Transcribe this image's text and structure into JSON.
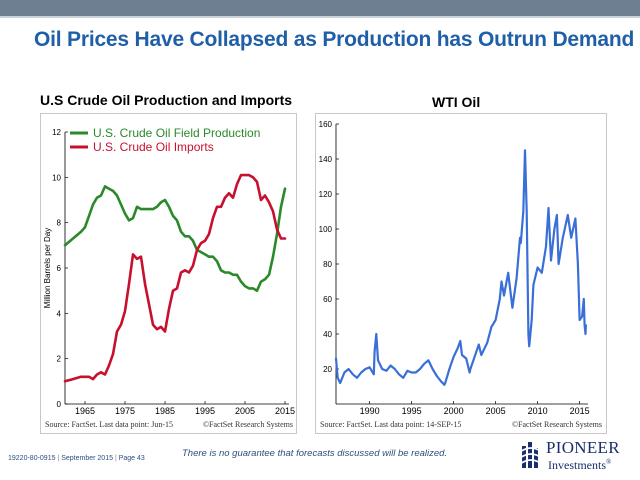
{
  "slide": {
    "title": "Oil Prices Have Collapsed as Production has Outrun Demand",
    "disclaimer": "There is no guarantee that forecasts discussed will be realized.",
    "footer_id": "19220-80-0915",
    "footer_date": "September 2015",
    "footer_page": "Page 43",
    "logo_name": "PIONEER",
    "logo_sub": "Investments",
    "logo_reg": "®",
    "colors": {
      "title": "#1f5fa8",
      "topbar": "#6f7f92",
      "logo": "#1a2f6b"
    }
  },
  "chart_data": [
    {
      "type": "line",
      "title": "U.S Crude Oil Production and Imports",
      "ylabel": "Million Barrels per Day",
      "xlabel": "",
      "xlim": [
        1960,
        2016
      ],
      "ylim": [
        0,
        12
      ],
      "x_ticks": [
        1965,
        1975,
        1985,
        1995,
        2005,
        2015
      ],
      "y_ticks": [
        0,
        2,
        4,
        6,
        8,
        10,
        12
      ],
      "grid": false,
      "legend": "top-left",
      "source": "Source: FactSet. Last data point: Jun-15",
      "copyright": "©FactSet Research Systems",
      "series": [
        {
          "name": "U.S. Crude Oil Field Production",
          "color": "#2a8a2a",
          "points": [
            [
              1960,
              7.0
            ],
            [
              1962,
              7.3
            ],
            [
              1964,
              7.6
            ],
            [
              1965,
              7.8
            ],
            [
              1966,
              8.3
            ],
            [
              1967,
              8.8
            ],
            [
              1968,
              9.1
            ],
            [
              1969,
              9.2
            ],
            [
              1970,
              9.6
            ],
            [
              1971,
              9.5
            ],
            [
              1972,
              9.4
            ],
            [
              1973,
              9.2
            ],
            [
              1974,
              8.8
            ],
            [
              1975,
              8.4
            ],
            [
              1976,
              8.1
            ],
            [
              1977,
              8.2
            ],
            [
              1978,
              8.7
            ],
            [
              1979,
              8.6
            ],
            [
              1980,
              8.6
            ],
            [
              1981,
              8.6
            ],
            [
              1982,
              8.6
            ],
            [
              1983,
              8.7
            ],
            [
              1984,
              8.9
            ],
            [
              1985,
              9.0
            ],
            [
              1986,
              8.7
            ],
            [
              1987,
              8.3
            ],
            [
              1988,
              8.1
            ],
            [
              1989,
              7.6
            ],
            [
              1990,
              7.4
            ],
            [
              1991,
              7.4
            ],
            [
              1992,
              7.2
            ],
            [
              1993,
              6.8
            ],
            [
              1994,
              6.7
            ],
            [
              1995,
              6.6
            ],
            [
              1996,
              6.5
            ],
            [
              1997,
              6.5
            ],
            [
              1998,
              6.3
            ],
            [
              1999,
              5.9
            ],
            [
              2000,
              5.8
            ],
            [
              2001,
              5.8
            ],
            [
              2002,
              5.7
            ],
            [
              2003,
              5.7
            ],
            [
              2004,
              5.4
            ],
            [
              2005,
              5.2
            ],
            [
              2006,
              5.1
            ],
            [
              2007,
              5.1
            ],
            [
              2008,
              5.0
            ],
            [
              2009,
              5.4
            ],
            [
              2010,
              5.5
            ],
            [
              2011,
              5.7
            ],
            [
              2012,
              6.5
            ],
            [
              2013,
              7.5
            ],
            [
              2014,
              8.7
            ],
            [
              2015,
              9.5
            ]
          ]
        },
        {
          "name": "U.S. Crude Oil Imports",
          "color": "#c8102e",
          "points": [
            [
              1960,
              1.0
            ],
            [
              1962,
              1.1
            ],
            [
              1964,
              1.2
            ],
            [
              1965,
              1.2
            ],
            [
              1966,
              1.2
            ],
            [
              1967,
              1.1
            ],
            [
              1968,
              1.3
            ],
            [
              1969,
              1.4
            ],
            [
              1970,
              1.3
            ],
            [
              1971,
              1.7
            ],
            [
              1972,
              2.2
            ],
            [
              1973,
              3.2
            ],
            [
              1974,
              3.5
            ],
            [
              1975,
              4.1
            ],
            [
              1976,
              5.3
            ],
            [
              1977,
              6.6
            ],
            [
              1978,
              6.4
            ],
            [
              1979,
              6.5
            ],
            [
              1980,
              5.3
            ],
            [
              1981,
              4.4
            ],
            [
              1982,
              3.5
            ],
            [
              1983,
              3.3
            ],
            [
              1984,
              3.4
            ],
            [
              1985,
              3.2
            ],
            [
              1986,
              4.2
            ],
            [
              1987,
              5.0
            ],
            [
              1988,
              5.1
            ],
            [
              1989,
              5.8
            ],
            [
              1990,
              5.9
            ],
            [
              1991,
              5.8
            ],
            [
              1992,
              6.1
            ],
            [
              1993,
              6.8
            ],
            [
              1994,
              7.1
            ],
            [
              1995,
              7.2
            ],
            [
              1996,
              7.5
            ],
            [
              1997,
              8.2
            ],
            [
              1998,
              8.7
            ],
            [
              1999,
              8.7
            ],
            [
              2000,
              9.1
            ],
            [
              2001,
              9.3
            ],
            [
              2002,
              9.1
            ],
            [
              2003,
              9.7
            ],
            [
              2004,
              10.1
            ],
            [
              2005,
              10.1
            ],
            [
              2006,
              10.1
            ],
            [
              2007,
              10.0
            ],
            [
              2008,
              9.8
            ],
            [
              2009,
              9.0
            ],
            [
              2010,
              9.2
            ],
            [
              2011,
              8.9
            ],
            [
              2012,
              8.5
            ],
            [
              2013,
              7.7
            ],
            [
              2014,
              7.3
            ],
            [
              2015,
              7.3
            ]
          ]
        }
      ]
    },
    {
      "type": "line",
      "title": "WTI Oil",
      "ylabel": "",
      "xlabel": "",
      "xlim": [
        1986,
        2016
      ],
      "ylim": [
        0,
        160
      ],
      "x_ticks": [
        1990,
        1995,
        2000,
        2005,
        2010,
        2015
      ],
      "y_ticks": [
        20,
        40,
        60,
        80,
        100,
        120,
        140,
        160
      ],
      "grid": false,
      "legend": "none",
      "source": "Source: FactSet. Last data point: 14-SEP-15",
      "copyright": "©FactSet Research Systems",
      "series": [
        {
          "color": "#3a6fd8",
          "points": [
            [
              1986,
              26
            ],
            [
              1986.2,
              15
            ],
            [
              1986.5,
              12
            ],
            [
              1987,
              18
            ],
            [
              1987.5,
              20
            ],
            [
              1988,
              17
            ],
            [
              1988.5,
              15
            ],
            [
              1989,
              18
            ],
            [
              1989.5,
              20
            ],
            [
              1990,
              21
            ],
            [
              1990.5,
              17
            ],
            [
              1990.6,
              30
            ],
            [
              1990.8,
              40
            ],
            [
              1991,
              25
            ],
            [
              1991.5,
              20
            ],
            [
              1992,
              19
            ],
            [
              1992.5,
              22
            ],
            [
              1993,
              20
            ],
            [
              1993.5,
              17
            ],
            [
              1994,
              15
            ],
            [
              1994.5,
              19
            ],
            [
              1995,
              18
            ],
            [
              1995.5,
              18
            ],
            [
              1996,
              20
            ],
            [
              1996.5,
              23
            ],
            [
              1997,
              25
            ],
            [
              1997.5,
              20
            ],
            [
              1998,
              16
            ],
            [
              1998.5,
              13
            ],
            [
              1998.9,
              11
            ],
            [
              1999,
              12
            ],
            [
              1999.5,
              20
            ],
            [
              2000,
              27
            ],
            [
              2000.5,
              32
            ],
            [
              2000.8,
              36
            ],
            [
              2001,
              28
            ],
            [
              2001.5,
              26
            ],
            [
              2001.9,
              18
            ],
            [
              2002,
              20
            ],
            [
              2002.5,
              27
            ],
            [
              2003,
              34
            ],
            [
              2003.3,
              28
            ],
            [
              2003.5,
              30
            ],
            [
              2004,
              35
            ],
            [
              2004.5,
              44
            ],
            [
              2005,
              48
            ],
            [
              2005.5,
              60
            ],
            [
              2005.7,
              70
            ],
            [
              2006,
              62
            ],
            [
              2006.5,
              75
            ],
            [
              2007,
              55
            ],
            [
              2007.5,
              72
            ],
            [
              2007.9,
              95
            ],
            [
              2008,
              92
            ],
            [
              2008.3,
              110
            ],
            [
              2008.5,
              145
            ],
            [
              2008.7,
              110
            ],
            [
              2008.9,
              40
            ],
            [
              2009,
              33
            ],
            [
              2009.3,
              48
            ],
            [
              2009.5,
              68
            ],
            [
              2010,
              78
            ],
            [
              2010.5,
              75
            ],
            [
              2011,
              90
            ],
            [
              2011.3,
              112
            ],
            [
              2011.6,
              82
            ],
            [
              2012,
              100
            ],
            [
              2012.3,
              108
            ],
            [
              2012.5,
              80
            ],
            [
              2013,
              95
            ],
            [
              2013.6,
              108
            ],
            [
              2014,
              95
            ],
            [
              2014.5,
              106
            ],
            [
              2014.8,
              80
            ],
            [
              2015,
              48
            ],
            [
              2015.3,
              50
            ],
            [
              2015.5,
              60
            ],
            [
              2015.6,
              45
            ],
            [
              2015.7,
              40
            ],
            [
              2015.75,
              45
            ]
          ]
        }
      ]
    }
  ]
}
